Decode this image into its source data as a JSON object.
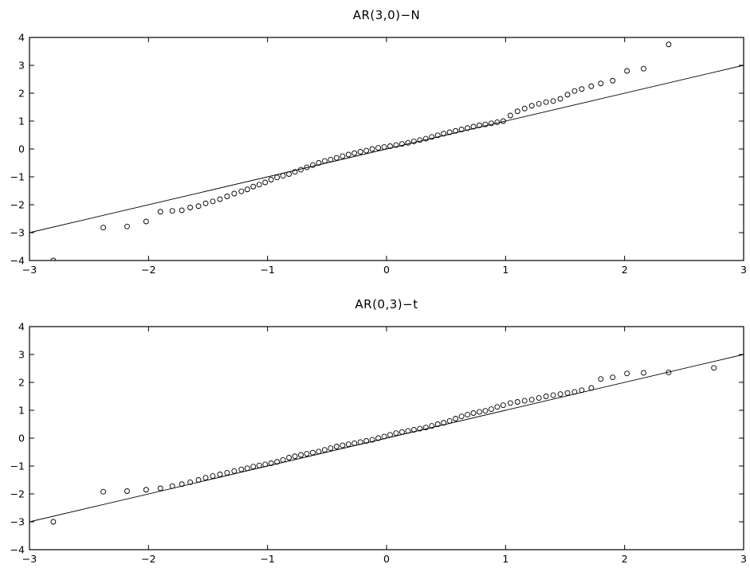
{
  "chart_data": [
    {
      "type": "scatter",
      "title": "AR(3,0)−N",
      "xlim": [
        -3,
        3
      ],
      "ylim": [
        -4,
        4
      ],
      "xticks": [
        -3,
        -2,
        -1,
        0,
        1,
        2,
        3
      ],
      "yticks": [
        -4,
        -3,
        -2,
        -1,
        0,
        1,
        2,
        3,
        4
      ],
      "xtick_labels": [
        "−3",
        "−2",
        "−1",
        "0",
        "1",
        "2",
        "3"
      ],
      "ytick_labels": [
        "−4",
        "−3",
        "−2",
        "−1",
        "0",
        "1",
        "2",
        "3",
        "4"
      ],
      "reference_line": {
        "x": [
          -3,
          3
        ],
        "y": [
          -3,
          3
        ]
      },
      "points": {
        "x": [
          -2.8,
          -2.38,
          -2.18,
          -2.02,
          -1.9,
          -1.8,
          -1.72,
          -1.65,
          -1.58,
          -1.52,
          -1.46,
          -1.4,
          -1.34,
          -1.28,
          -1.22,
          -1.17,
          -1.12,
          -1.07,
          -1.02,
          -0.97,
          -0.92,
          -0.87,
          -0.82,
          -0.77,
          -0.72,
          -0.67,
          -0.62,
          -0.57,
          -0.52,
          -0.47,
          -0.42,
          -0.37,
          -0.32,
          -0.27,
          -0.22,
          -0.17,
          -0.12,
          -0.07,
          -0.02,
          0.03,
          0.08,
          0.13,
          0.18,
          0.23,
          0.28,
          0.33,
          0.38,
          0.43,
          0.48,
          0.53,
          0.58,
          0.63,
          0.68,
          0.73,
          0.78,
          0.83,
          0.88,
          0.93,
          0.98,
          1.04,
          1.1,
          1.16,
          1.22,
          1.28,
          1.34,
          1.4,
          1.46,
          1.52,
          1.58,
          1.64,
          1.72,
          1.8,
          1.9,
          2.02,
          2.16,
          2.37
        ],
        "y": [
          -4.0,
          -2.82,
          -2.78,
          -2.6,
          -2.25,
          -2.22,
          -2.2,
          -2.1,
          -2.05,
          -1.95,
          -1.88,
          -1.8,
          -1.7,
          -1.6,
          -1.52,
          -1.45,
          -1.35,
          -1.28,
          -1.2,
          -1.1,
          -1.02,
          -0.96,
          -0.9,
          -0.82,
          -0.74,
          -0.66,
          -0.58,
          -0.5,
          -0.43,
          -0.38,
          -0.32,
          -0.26,
          -0.2,
          -0.15,
          -0.1,
          -0.06,
          0.0,
          0.04,
          0.07,
          0.1,
          0.14,
          0.18,
          0.22,
          0.27,
          0.32,
          0.37,
          0.43,
          0.49,
          0.55,
          0.6,
          0.65,
          0.7,
          0.75,
          0.8,
          0.85,
          0.88,
          0.92,
          0.96,
          1.0,
          1.2,
          1.35,
          1.45,
          1.55,
          1.62,
          1.68,
          1.72,
          1.8,
          1.95,
          2.08,
          2.15,
          2.25,
          2.35,
          2.45,
          2.8,
          2.88,
          3.75
        ]
      }
    },
    {
      "type": "scatter",
      "title": "AR(0,3)−t",
      "xlim": [
        -3,
        3
      ],
      "ylim": [
        -4,
        4
      ],
      "xticks": [
        -3,
        -2,
        -1,
        0,
        1,
        2,
        3
      ],
      "yticks": [
        -4,
        -3,
        -2,
        -1,
        0,
        1,
        2,
        3,
        4
      ],
      "xtick_labels": [
        "−3",
        "−2",
        "−1",
        "0",
        "1",
        "2",
        "3"
      ],
      "ytick_labels": [
        "−4",
        "−3",
        "−2",
        "−1",
        "0",
        "1",
        "2",
        "3",
        "4"
      ],
      "reference_line": {
        "x": [
          -3,
          3
        ],
        "y": [
          -3,
          3
        ]
      },
      "points": {
        "x": [
          -2.8,
          -2.38,
          -2.18,
          -2.02,
          -1.9,
          -1.8,
          -1.72,
          -1.65,
          -1.58,
          -1.52,
          -1.46,
          -1.4,
          -1.34,
          -1.28,
          -1.22,
          -1.17,
          -1.12,
          -1.07,
          -1.02,
          -0.97,
          -0.92,
          -0.87,
          -0.82,
          -0.77,
          -0.72,
          -0.67,
          -0.62,
          -0.57,
          -0.52,
          -0.47,
          -0.42,
          -0.37,
          -0.32,
          -0.27,
          -0.22,
          -0.17,
          -0.12,
          -0.07,
          -0.02,
          0.03,
          0.08,
          0.13,
          0.18,
          0.23,
          0.28,
          0.33,
          0.38,
          0.43,
          0.48,
          0.53,
          0.58,
          0.63,
          0.68,
          0.73,
          0.78,
          0.83,
          0.88,
          0.93,
          0.98,
          1.04,
          1.1,
          1.16,
          1.22,
          1.28,
          1.34,
          1.4,
          1.46,
          1.52,
          1.58,
          1.64,
          1.72,
          1.8,
          1.9,
          2.02,
          2.16,
          2.37,
          2.75
        ],
        "y": [
          -3.0,
          -1.92,
          -1.9,
          -1.85,
          -1.8,
          -1.72,
          -1.65,
          -1.58,
          -1.5,
          -1.42,
          -1.36,
          -1.3,
          -1.24,
          -1.18,
          -1.12,
          -1.08,
          -1.02,
          -0.98,
          -0.94,
          -0.9,
          -0.85,
          -0.78,
          -0.7,
          -0.65,
          -0.6,
          -0.56,
          -0.52,
          -0.48,
          -0.42,
          -0.36,
          -0.3,
          -0.26,
          -0.22,
          -0.18,
          -0.14,
          -0.1,
          -0.06,
          0.0,
          0.06,
          0.12,
          0.18,
          0.22,
          0.26,
          0.3,
          0.34,
          0.38,
          0.44,
          0.5,
          0.55,
          0.62,
          0.7,
          0.78,
          0.84,
          0.9,
          0.94,
          0.98,
          1.04,
          1.12,
          1.18,
          1.26,
          1.3,
          1.34,
          1.38,
          1.44,
          1.5,
          1.54,
          1.58,
          1.62,
          1.66,
          1.72,
          1.8,
          2.12,
          2.18,
          2.32,
          2.34,
          2.36,
          2.52
        ]
      }
    }
  ]
}
